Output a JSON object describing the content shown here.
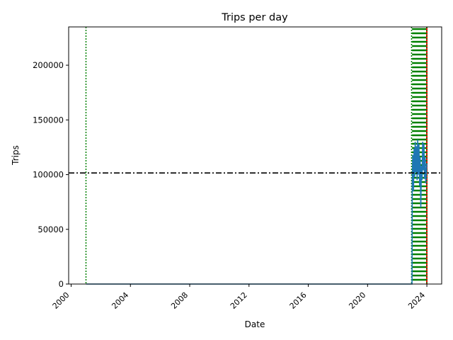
{
  "chart_data": {
    "type": "line",
    "title": "Trips per day",
    "xlabel": "Date",
    "ylabel": "Trips",
    "xlim": [
      "1999-11-01",
      "2024-12-31"
    ],
    "ylim": [
      0,
      235000
    ],
    "x_ticks": [
      "2000",
      "2004",
      "2008",
      "2012",
      "2016",
      "2020",
      "2024"
    ],
    "y_ticks": [
      0,
      50000,
      100000,
      150000,
      200000
    ],
    "grid": false,
    "mean_line": {
      "y": 101500,
      "style": "dash-dot",
      "color": "#000000"
    },
    "series": [
      {
        "color": "#1f77b4",
        "points": [
          [
            "2001-01-01",
            0
          ],
          [
            "2022-12-31",
            0
          ],
          [
            "2023-01-05",
            92000
          ],
          [
            "2023-01-20",
            118000
          ],
          [
            "2023-02-05",
            85000
          ],
          [
            "2023-02-20",
            124000
          ],
          [
            "2023-03-05",
            98000
          ],
          [
            "2023-03-20",
            130000
          ],
          [
            "2023-04-05",
            102000
          ],
          [
            "2023-04-20",
            126000
          ],
          [
            "2023-05-05",
            95000
          ],
          [
            "2023-05-20",
            132000
          ],
          [
            "2023-06-05",
            100000
          ],
          [
            "2023-06-20",
            128000
          ],
          [
            "2023-07-05",
            90000
          ],
          [
            "2023-07-20",
            116000
          ],
          [
            "2023-08-05",
            70000
          ],
          [
            "2023-08-20",
            108000
          ],
          [
            "2023-09-05",
            95000
          ],
          [
            "2023-09-20",
            130000
          ],
          [
            "2023-10-05",
            104000
          ],
          [
            "2023-10-20",
            128000
          ],
          [
            "2023-11-05",
            96000
          ],
          [
            "2023-11-20",
            116000
          ],
          [
            "2023-12-05",
            92000
          ],
          [
            "2023-12-31",
            110000
          ]
        ]
      }
    ],
    "vertical_markers": [
      {
        "x": "2001-01-01",
        "color": "#008000",
        "style": "dotted"
      },
      {
        "x": "2022-12-20",
        "color": "#008000",
        "style": "dotted"
      },
      {
        "x": "2023-12-31",
        "color": "#008000",
        "style": "dotted"
      }
    ],
    "shaded_band": {
      "x_start": "2023-01-01",
      "x_end": "2023-12-31",
      "stripe_color": "#008000",
      "edge_color": "#ff0000"
    }
  }
}
